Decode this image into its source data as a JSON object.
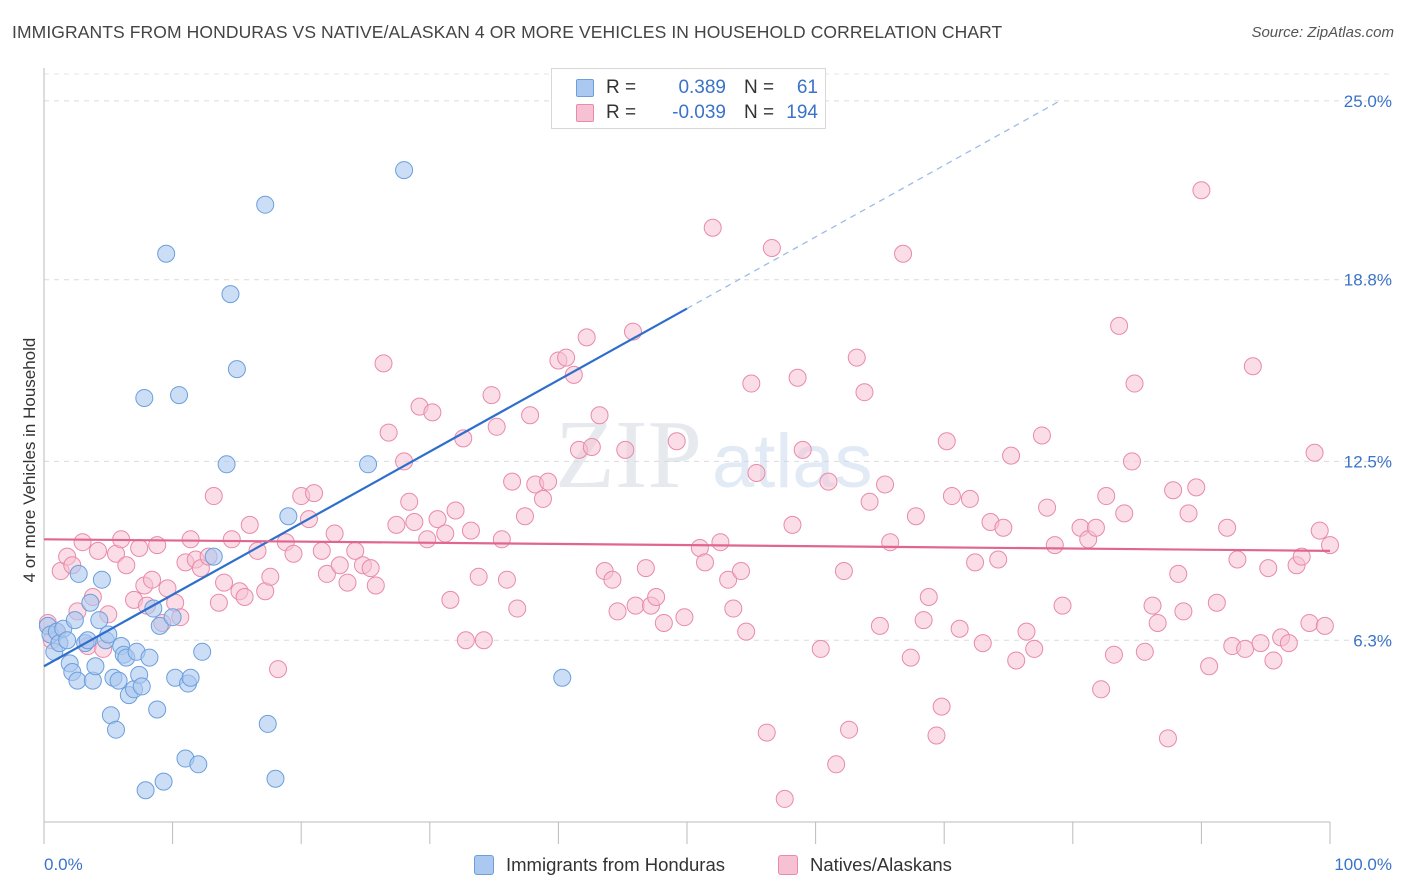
{
  "header": {
    "title": "IMMIGRANTS FROM HONDURAS VS NATIVE/ALASKAN 4 OR MORE VEHICLES IN HOUSEHOLD CORRELATION CHART",
    "source": "Source: ZipAtlas.com"
  },
  "watermark": {
    "zip": "ZIP",
    "atlas": "atlas"
  },
  "legend": {
    "r_label": "R =",
    "n_label": "N =",
    "series1": {
      "r": "0.389",
      "n": "61"
    },
    "series2": {
      "r": "-0.039",
      "n": "194"
    }
  },
  "bottom_legend": {
    "series1": "Immigrants from Honduras",
    "series2": "Natives/Alaskans"
  },
  "colors": {
    "blue_fill": "#aac8f0",
    "blue_stroke": "#6b9fdc",
    "blue_line": "#2f6fcc",
    "pink_fill": "#f6c1d2",
    "pink_stroke": "#e98aaa",
    "pink_line": "#e0668f",
    "axis_text": "#3a73c9"
  },
  "chart_data": {
    "type": "scatter",
    "ylabel": "4 or more Vehicles in Household",
    "x_tick_labels": [
      "0.0%",
      "100.0%"
    ],
    "y_tick_labels": [
      "6.3%",
      "12.5%",
      "18.8%",
      "25.0%"
    ],
    "y_ticks": [
      6.3,
      12.5,
      18.8,
      25.0
    ],
    "xlim": [
      0,
      100
    ],
    "ylim": [
      0,
      26
    ],
    "grid": true,
    "legend": "top-center",
    "series": [
      {
        "name": "Immigrants from Honduras",
        "color": "#aac8f0",
        "trend": {
          "x0": 0,
          "y0": 5.4,
          "x1": 50,
          "y1": 17.8,
          "dashed_to_x": 79,
          "dashed_to_y": 25.0
        },
        "points": [
          [
            0.3,
            6.8
          ],
          [
            0.5,
            6.5
          ],
          [
            0.8,
            5.9
          ],
          [
            1.0,
            6.6
          ],
          [
            1.2,
            6.2
          ],
          [
            1.5,
            6.7
          ],
          [
            1.8,
            6.3
          ],
          [
            2.0,
            5.5
          ],
          [
            2.2,
            5.2
          ],
          [
            2.4,
            7.0
          ],
          [
            2.6,
            4.9
          ],
          [
            2.7,
            8.6
          ],
          [
            3.2,
            6.2
          ],
          [
            3.4,
            6.3
          ],
          [
            3.6,
            7.6
          ],
          [
            3.8,
            4.9
          ],
          [
            4.0,
            5.4
          ],
          [
            4.3,
            7.0
          ],
          [
            4.5,
            8.4
          ],
          [
            4.8,
            6.3
          ],
          [
            5.0,
            6.5
          ],
          [
            5.2,
            3.7
          ],
          [
            5.4,
            5.0
          ],
          [
            5.6,
            3.2
          ],
          [
            5.8,
            4.9
          ],
          [
            6.0,
            6.1
          ],
          [
            6.2,
            5.8
          ],
          [
            6.4,
            5.7
          ],
          [
            6.6,
            4.4
          ],
          [
            7.0,
            4.6
          ],
          [
            7.2,
            5.9
          ],
          [
            7.4,
            5.1
          ],
          [
            7.6,
            4.7
          ],
          [
            7.8,
            14.7
          ],
          [
            7.9,
            1.1
          ],
          [
            8.2,
            5.7
          ],
          [
            8.5,
            7.4
          ],
          [
            8.8,
            3.9
          ],
          [
            9.0,
            6.8
          ],
          [
            9.3,
            1.4
          ],
          [
            9.5,
            19.7
          ],
          [
            10.0,
            7.1
          ],
          [
            10.2,
            5.0
          ],
          [
            10.5,
            14.8
          ],
          [
            11.0,
            2.2
          ],
          [
            11.2,
            4.8
          ],
          [
            11.4,
            5.0
          ],
          [
            12.0,
            2.0
          ],
          [
            12.3,
            5.9
          ],
          [
            13.2,
            9.2
          ],
          [
            14.2,
            12.4
          ],
          [
            14.5,
            18.3
          ],
          [
            15.0,
            15.7
          ],
          [
            17.2,
            21.4
          ],
          [
            17.4,
            3.4
          ],
          [
            18.0,
            1.5
          ],
          [
            19.0,
            10.6
          ],
          [
            25.2,
            12.4
          ],
          [
            28.0,
            22.6
          ],
          [
            40.3,
            5.0
          ]
        ]
      },
      {
        "name": "Natives/Alaskans",
        "color": "#f6c1d2",
        "trend": {
          "x0": 0,
          "y0": 9.8,
          "x1": 100,
          "y1": 9.4
        },
        "points": [
          [
            0.3,
            6.9
          ],
          [
            0.6,
            6.3
          ],
          [
            1.0,
            6.6
          ],
          [
            1.3,
            8.7
          ],
          [
            1.8,
            9.2
          ],
          [
            2.2,
            8.9
          ],
          [
            2.6,
            7.3
          ],
          [
            3.0,
            9.7
          ],
          [
            3.4,
            6.1
          ],
          [
            3.8,
            7.8
          ],
          [
            4.2,
            9.4
          ],
          [
            4.6,
            6.0
          ],
          [
            5.0,
            7.2
          ],
          [
            5.6,
            9.3
          ],
          [
            6.0,
            9.8
          ],
          [
            6.4,
            8.9
          ],
          [
            7.0,
            7.7
          ],
          [
            7.4,
            9.5
          ],
          [
            7.8,
            8.2
          ],
          [
            8.0,
            7.5
          ],
          [
            8.4,
            8.4
          ],
          [
            8.8,
            9.6
          ],
          [
            9.2,
            6.9
          ],
          [
            9.6,
            8.1
          ],
          [
            10.2,
            7.6
          ],
          [
            10.6,
            7.1
          ],
          [
            11.0,
            9.0
          ],
          [
            11.4,
            9.8
          ],
          [
            11.8,
            9.1
          ],
          [
            12.2,
            8.8
          ],
          [
            12.8,
            9.2
          ],
          [
            13.2,
            11.3
          ],
          [
            13.6,
            7.6
          ],
          [
            14.0,
            8.3
          ],
          [
            14.6,
            9.8
          ],
          [
            15.2,
            8.0
          ],
          [
            15.6,
            7.8
          ],
          [
            16.0,
            10.3
          ],
          [
            16.6,
            9.4
          ],
          [
            17.2,
            8.0
          ],
          [
            17.6,
            8.5
          ],
          [
            18.2,
            5.3
          ],
          [
            18.8,
            9.7
          ],
          [
            19.4,
            9.3
          ],
          [
            20.0,
            11.3
          ],
          [
            20.6,
            10.5
          ],
          [
            21.0,
            11.4
          ],
          [
            21.6,
            9.4
          ],
          [
            22.0,
            8.6
          ],
          [
            22.6,
            10.0
          ],
          [
            23.0,
            8.9
          ],
          [
            23.6,
            8.3
          ],
          [
            24.2,
            9.4
          ],
          [
            24.8,
            8.9
          ],
          [
            25.4,
            8.8
          ],
          [
            25.8,
            8.2
          ],
          [
            26.4,
            15.9
          ],
          [
            26.8,
            13.5
          ],
          [
            27.4,
            10.3
          ],
          [
            28.0,
            12.5
          ],
          [
            28.4,
            11.1
          ],
          [
            28.8,
            10.4
          ],
          [
            29.2,
            14.4
          ],
          [
            29.8,
            9.8
          ],
          [
            30.2,
            14.2
          ],
          [
            30.6,
            10.5
          ],
          [
            31.2,
            10.0
          ],
          [
            31.6,
            7.7
          ],
          [
            32.0,
            10.8
          ],
          [
            32.6,
            13.3
          ],
          [
            32.8,
            6.3
          ],
          [
            33.2,
            10.1
          ],
          [
            33.8,
            8.5
          ],
          [
            34.2,
            6.3
          ],
          [
            34.8,
            14.8
          ],
          [
            35.2,
            13.7
          ],
          [
            35.6,
            9.8
          ],
          [
            36.0,
            8.4
          ],
          [
            36.4,
            11.8
          ],
          [
            36.8,
            7.4
          ],
          [
            37.4,
            10.6
          ],
          [
            37.8,
            14.1
          ],
          [
            38.2,
            11.7
          ],
          [
            38.8,
            11.2
          ],
          [
            39.2,
            11.8
          ],
          [
            40.0,
            16.0
          ],
          [
            40.6,
            16.1
          ],
          [
            41.2,
            15.5
          ],
          [
            41.6,
            12.9
          ],
          [
            42.2,
            16.8
          ],
          [
            42.6,
            13.0
          ],
          [
            43.2,
            14.1
          ],
          [
            43.6,
            8.7
          ],
          [
            44.2,
            8.4
          ],
          [
            44.6,
            7.3
          ],
          [
            45.2,
            12.9
          ],
          [
            45.8,
            17.0
          ],
          [
            46.0,
            7.5
          ],
          [
            46.8,
            8.8
          ],
          [
            47.2,
            7.5
          ],
          [
            47.6,
            7.8
          ],
          [
            48.2,
            6.9
          ],
          [
            49.2,
            13.2
          ],
          [
            49.8,
            7.1
          ],
          [
            51.0,
            9.5
          ],
          [
            51.4,
            9.0
          ],
          [
            52.0,
            20.6
          ],
          [
            52.6,
            9.7
          ],
          [
            53.2,
            8.4
          ],
          [
            53.6,
            7.4
          ],
          [
            54.2,
            8.7
          ],
          [
            54.6,
            6.6
          ],
          [
            55.0,
            15.2
          ],
          [
            55.4,
            12.1
          ],
          [
            56.2,
            3.1
          ],
          [
            56.6,
            19.9
          ],
          [
            57.6,
            0.8
          ],
          [
            58.2,
            10.3
          ],
          [
            58.6,
            15.4
          ],
          [
            59.0,
            12.9
          ],
          [
            60.4,
            6.0
          ],
          [
            61.0,
            11.8
          ],
          [
            61.6,
            2.0
          ],
          [
            62.2,
            8.7
          ],
          [
            62.6,
            3.2
          ],
          [
            63.2,
            16.1
          ],
          [
            63.8,
            14.9
          ],
          [
            64.2,
            11.1
          ],
          [
            65.0,
            6.8
          ],
          [
            65.4,
            11.7
          ],
          [
            65.8,
            9.7
          ],
          [
            66.8,
            19.7
          ],
          [
            67.4,
            5.7
          ],
          [
            67.8,
            10.6
          ],
          [
            68.4,
            7.0
          ],
          [
            68.8,
            7.8
          ],
          [
            69.4,
            3.0
          ],
          [
            69.8,
            4.0
          ],
          [
            70.2,
            13.2
          ],
          [
            70.6,
            11.3
          ],
          [
            71.2,
            6.7
          ],
          [
            72.0,
            11.2
          ],
          [
            72.4,
            9.0
          ],
          [
            73.0,
            6.2
          ],
          [
            73.6,
            10.4
          ],
          [
            74.2,
            9.1
          ],
          [
            74.6,
            10.2
          ],
          [
            75.2,
            12.7
          ],
          [
            75.6,
            5.6
          ],
          [
            76.4,
            6.6
          ],
          [
            77.0,
            6.0
          ],
          [
            77.6,
            13.4
          ],
          [
            78.0,
            10.9
          ],
          [
            78.6,
            9.6
          ],
          [
            79.2,
            7.5
          ],
          [
            80.6,
            10.2
          ],
          [
            81.2,
            9.8
          ],
          [
            81.8,
            10.2
          ],
          [
            82.2,
            4.6
          ],
          [
            82.6,
            11.3
          ],
          [
            83.2,
            5.8
          ],
          [
            83.6,
            17.2
          ],
          [
            84.0,
            10.7
          ],
          [
            84.6,
            12.5
          ],
          [
            84.8,
            15.2
          ],
          [
            85.6,
            5.9
          ],
          [
            86.2,
            7.5
          ],
          [
            86.6,
            6.9
          ],
          [
            87.4,
            2.9
          ],
          [
            87.8,
            11.5
          ],
          [
            88.2,
            8.6
          ],
          [
            88.6,
            7.3
          ],
          [
            89.0,
            10.7
          ],
          [
            89.6,
            11.6
          ],
          [
            90.0,
            21.9
          ],
          [
            90.6,
            5.4
          ],
          [
            91.2,
            7.6
          ],
          [
            92.0,
            10.2
          ],
          [
            92.4,
            6.1
          ],
          [
            92.8,
            9.1
          ],
          [
            93.4,
            6.0
          ],
          [
            94.0,
            15.8
          ],
          [
            94.6,
            6.2
          ],
          [
            95.2,
            8.8
          ],
          [
            95.6,
            5.6
          ],
          [
            96.2,
            6.4
          ],
          [
            96.8,
            6.2
          ],
          [
            97.4,
            8.9
          ],
          [
            97.8,
            9.2
          ],
          [
            98.4,
            6.9
          ],
          [
            98.8,
            12.8
          ],
          [
            99.2,
            10.1
          ],
          [
            99.6,
            6.8
          ],
          [
            100.0,
            9.6
          ]
        ]
      }
    ]
  }
}
